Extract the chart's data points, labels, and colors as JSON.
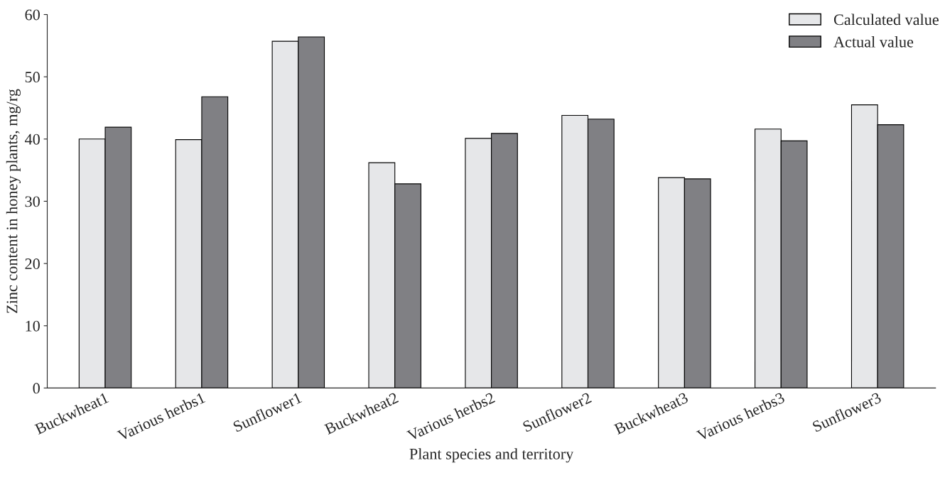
{
  "chart_data": {
    "type": "bar",
    "xlabel": "Plant species and territory",
    "ylabel": "Zinc content in honey plants, mg/rg",
    "categories": [
      "Buckwheat1",
      "Various herbs1",
      "Sunflower1",
      "Buckwheat2",
      "Various herbs2",
      "Sunflower2",
      "Buckwheat3",
      "Various herbs3",
      "Sunflower3"
    ],
    "series": [
      {
        "name": "Calculated value",
        "color": "#e6e7e9",
        "values": [
          40.0,
          39.9,
          55.7,
          36.2,
          40.1,
          43.8,
          33.8,
          41.6,
          45.5
        ]
      },
      {
        "name": "Actual value",
        "color": "#808084",
        "values": [
          41.9,
          46.8,
          56.4,
          32.8,
          40.9,
          43.2,
          33.6,
          39.7,
          42.3
        ]
      }
    ],
    "ylim": [
      0,
      60
    ],
    "yticks": [
      0,
      10,
      20,
      30,
      40,
      50,
      60
    ],
    "grid": false,
    "legend": "top right"
  }
}
